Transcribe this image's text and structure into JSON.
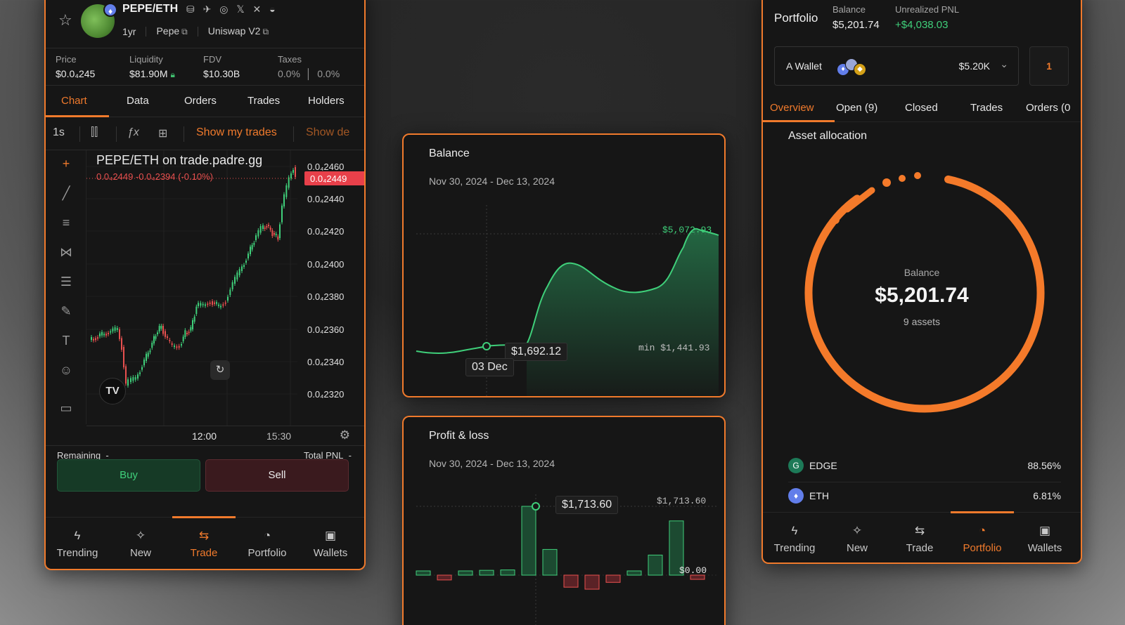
{
  "token": {
    "pair": "PEPE/ETH",
    "age": "1yr",
    "name": "Pepe",
    "dex": "Uniswap V2",
    "socials": "⛁ ✈ ◎ 𝕏 ✕ ◒"
  },
  "stats": {
    "price_label": "Price",
    "price": "$0.0₄245",
    "liquidity_label": "Liquidity",
    "liquidity": "$81.90M",
    "fdv_label": "FDV",
    "fdv": "$10.30B",
    "taxes_label": "Taxes",
    "tax_buy": "0.0%",
    "tax_sell": "0.0%"
  },
  "left_tabs": [
    "Chart",
    "Data",
    "Orders",
    "Trades",
    "Holders"
  ],
  "toolbar": {
    "interval": "1s",
    "show_my_trades": "Show my trades",
    "show_dev": "Show de"
  },
  "chart": {
    "title": "PEPE/ETH on trade.padre.gg",
    "ohlc": "0.0₄2449  -0.0₄2394 (-0.10%)",
    "last_price": "0.0₄2449",
    "price_ticks": [
      "0.0₄2460",
      "0.0₄2440",
      "0.0₄2420",
      "0.0₄2400",
      "0.0₄2380",
      "0.0₄2360",
      "0.0₄2340",
      "0.0₄2320"
    ],
    "time_ticks": [
      "12:00",
      "15:30"
    ],
    "logo": "TV",
    "colors": {
      "up": "#3fcf7a",
      "down": "#e8504f"
    }
  },
  "trade": {
    "remaining_label": "Remaining",
    "remaining_value": "-",
    "pnl_label": "Total PNL",
    "pnl_value": "-",
    "buy": "Buy",
    "sell": "Sell"
  },
  "nav": [
    {
      "label": "Trending",
      "icon": "lightning-icon"
    },
    {
      "label": "New",
      "icon": "sparkles-icon"
    },
    {
      "label": "Trade",
      "icon": "swap-icon"
    },
    {
      "label": "Portfolio",
      "icon": "pie-icon"
    },
    {
      "label": "Wallets",
      "icon": "wallet-icon"
    }
  ],
  "balance_card": {
    "title": "Balance",
    "date_range": "Nov 30, 2024 - Dec 13, 2024",
    "max_label": "$5,072.93",
    "min_label": "min $1,441.93",
    "hover_value": "$1,692.12",
    "hover_date": "03 Dec"
  },
  "pnl_card": {
    "title": "Profit & loss",
    "date_range": "Nov 30, 2024 - Dec 13, 2024",
    "hover_value": "$1,713.60",
    "max_label": "$1,713.60",
    "zero_label": "$0.00"
  },
  "portfolio": {
    "title": "Portfolio",
    "balance_label": "Balance",
    "balance": "$5,201.74",
    "upnl_label": "Unrealized PNL",
    "upnl": "+$4,038.03",
    "wallet_name": "A Wallet",
    "wallet_amount": "$5.20K",
    "notif_count": "1",
    "tabs": [
      "Overview",
      "Open (9)",
      "Closed",
      "Trades",
      "Orders (0"
    ],
    "section": "Asset allocation",
    "center_label": "Balance",
    "center_value": "$5,201.74",
    "center_sub": "9 assets",
    "assets": [
      {
        "symbol": "EDGE",
        "pct": "88.56%"
      },
      {
        "symbol": "ETH",
        "pct": "6.81%"
      }
    ]
  },
  "colors": {
    "accent": "#f07a2c",
    "green": "#3fcf7a",
    "red": "#e8504f",
    "panel": "#161616"
  }
}
